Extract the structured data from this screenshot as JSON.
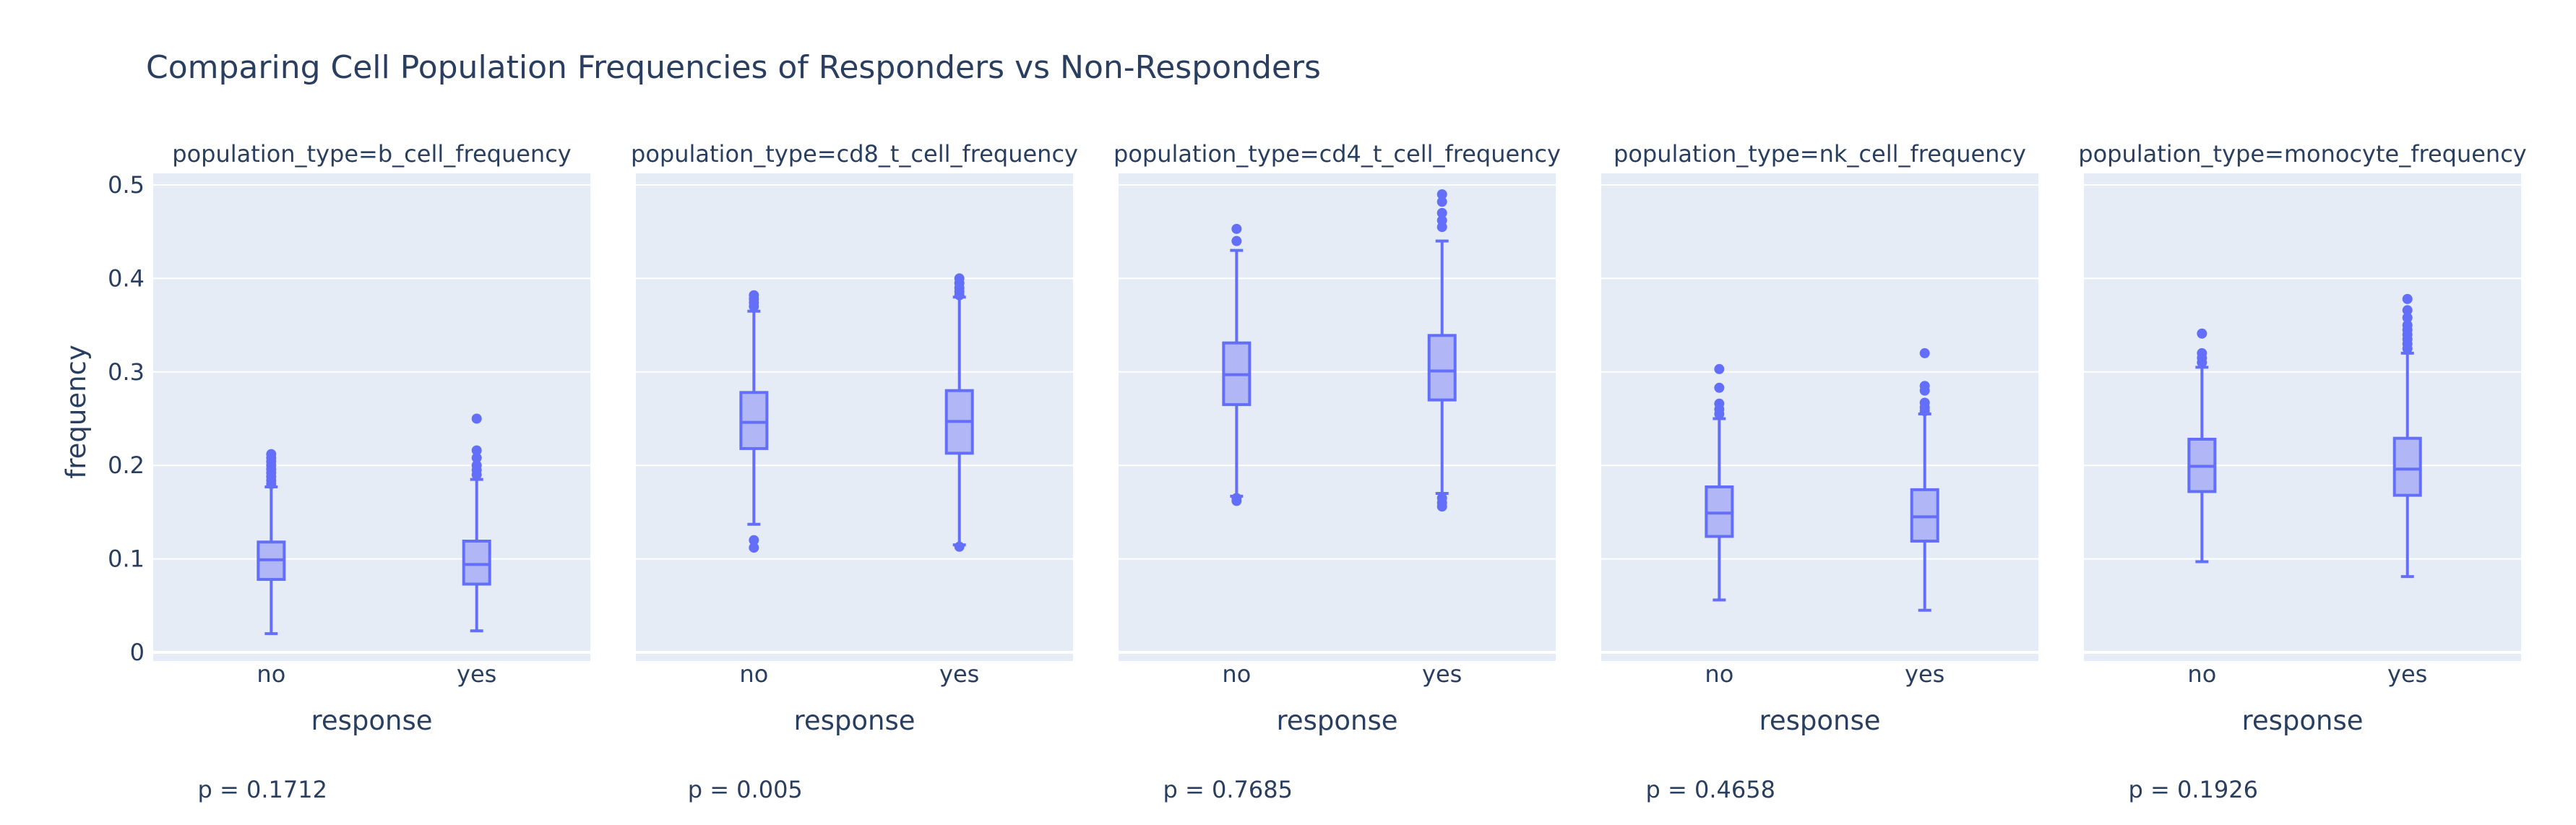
{
  "chart_data": {
    "type": "box",
    "title": "Comparing Cell Population Frequencies of Responders vs Non-Responders",
    "ylabel": "frequency",
    "xlabel": "response",
    "ylim": [
      0,
      0.5
    ],
    "yticks": [
      "0",
      "0.1",
      "0.2",
      "0.3",
      "0.4",
      "0.5"
    ],
    "categories": [
      "no",
      "yes"
    ],
    "colors": {
      "box_line": "#636efa",
      "box_fill": "#b1b6f6",
      "plot_bg": "#e5ecf6",
      "grid": "#ffffff",
      "text": "#2a3f5f"
    },
    "facets": [
      {
        "label": "population_type=b_cell_frequency",
        "p_value": "p = 0.1712",
        "boxes": [
          {
            "category": "no",
            "min": 0.02,
            "q1": 0.078,
            "median": 0.099,
            "q3": 0.118,
            "max": 0.177,
            "outliers": [
              0.18,
              0.184,
              0.188,
              0.192,
              0.196,
              0.2,
              0.204,
              0.208,
              0.212
            ]
          },
          {
            "category": "yes",
            "min": 0.023,
            "q1": 0.073,
            "median": 0.094,
            "q3": 0.119,
            "max": 0.185,
            "outliers": [
              0.19,
              0.195,
              0.2,
              0.208,
              0.216,
              0.25
            ]
          }
        ]
      },
      {
        "label": "population_type=cd8_t_cell_frequency",
        "p_value": "p = 0.005",
        "boxes": [
          {
            "category": "no",
            "min": 0.137,
            "q1": 0.218,
            "median": 0.246,
            "q3": 0.278,
            "max": 0.365,
            "outliers": [
              0.112,
              0.12,
              0.37,
              0.374,
              0.378,
              0.382
            ]
          },
          {
            "category": "yes",
            "min": 0.115,
            "q1": 0.213,
            "median": 0.247,
            "q3": 0.28,
            "max": 0.38,
            "outliers": [
              0.113,
              0.382,
              0.386,
              0.39,
              0.395,
              0.4
            ]
          }
        ]
      },
      {
        "label": "population_type=cd4_t_cell_frequency",
        "p_value": "p = 0.7685",
        "boxes": [
          {
            "category": "no",
            "min": 0.167,
            "q1": 0.265,
            "median": 0.297,
            "q3": 0.331,
            "max": 0.43,
            "outliers": [
              0.162,
              0.165,
              0.44,
              0.453
            ]
          },
          {
            "category": "yes",
            "min": 0.17,
            "q1": 0.27,
            "median": 0.301,
            "q3": 0.339,
            "max": 0.44,
            "outliers": [
              0.156,
              0.16,
              0.165,
              0.455,
              0.462,
              0.47,
              0.482,
              0.49
            ]
          }
        ]
      },
      {
        "label": "population_type=nk_cell_frequency",
        "p_value": "p = 0.4658",
        "boxes": [
          {
            "category": "no",
            "min": 0.056,
            "q1": 0.124,
            "median": 0.149,
            "q3": 0.177,
            "max": 0.25,
            "outliers": [
              0.255,
              0.26,
              0.266,
              0.283,
              0.303
            ]
          },
          {
            "category": "yes",
            "min": 0.045,
            "q1": 0.119,
            "median": 0.145,
            "q3": 0.174,
            "max": 0.255,
            "outliers": [
              0.258,
              0.262,
              0.267,
              0.28,
              0.285,
              0.32
            ]
          }
        ]
      },
      {
        "label": "population_type=monocyte_frequency",
        "p_value": "p = 0.1926",
        "boxes": [
          {
            "category": "no",
            "min": 0.097,
            "q1": 0.172,
            "median": 0.199,
            "q3": 0.228,
            "max": 0.305,
            "outliers": [
              0.31,
              0.315,
              0.32,
              0.341
            ]
          },
          {
            "category": "yes",
            "min": 0.081,
            "q1": 0.168,
            "median": 0.196,
            "q3": 0.229,
            "max": 0.32,
            "outliers": [
              0.325,
              0.33,
              0.335,
              0.34,
              0.345,
              0.35,
              0.358,
              0.366,
              0.378
            ]
          }
        ]
      }
    ]
  }
}
